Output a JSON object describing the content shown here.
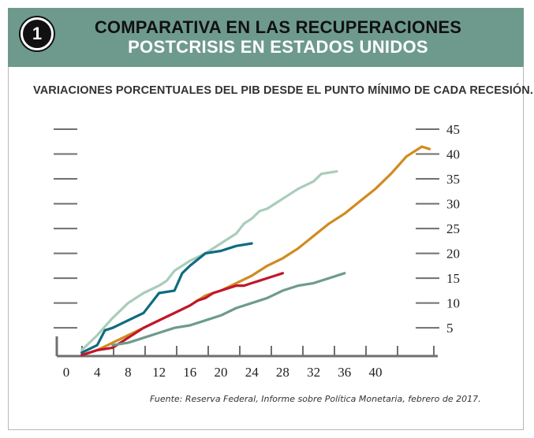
{
  "header": {
    "number": "1",
    "title_line1": "COMPARATIVA EN LAS RECUPERACIONES",
    "title_line2": "POSTCRISIS EN ESTADOS UNIDOS"
  },
  "subtitle": "VARIACIONES PORCENTUALES DEL PIB DESDE EL PUNTO MÍNIMO DE CADA RECESIÓN.",
  "source": "Fuente: Reserva Federal, Informe sobre Política Monetaria, febrero de 2017.",
  "chart_data": {
    "type": "line",
    "xlim": [
      -2,
      48
    ],
    "ylim": [
      -1,
      45
    ],
    "x_ticks": [
      0,
      4,
      8,
      12,
      16,
      20,
      24,
      28,
      32,
      36,
      40
    ],
    "y_ticks": [
      5,
      10,
      15,
      20,
      25,
      30,
      35,
      40,
      45
    ],
    "grid": false,
    "series": [
      {
        "color": "#a9cdbb",
        "x": [
          2,
          4,
          6,
          8,
          10,
          12,
          13,
          14,
          15,
          16,
          18,
          20,
          22,
          23,
          24,
          25,
          26,
          27,
          28,
          30,
          32,
          33,
          35
        ],
        "y": [
          0.5,
          3.5,
          7,
          10,
          12,
          13.5,
          14.5,
          16.5,
          17.5,
          18.5,
          20,
          22,
          24,
          26,
          27,
          28.5,
          29,
          30,
          31,
          33,
          34.5,
          36,
          36.5
        ]
      },
      {
        "color": "#d18b1f",
        "x": [
          2,
          4,
          6,
          8,
          10,
          12,
          14,
          16,
          18,
          20,
          22,
          24,
          26,
          28,
          30,
          32,
          34,
          36,
          38,
          40,
          42,
          44,
          46,
          47
        ],
        "y": [
          -0.5,
          0.5,
          2,
          3.5,
          5,
          6.5,
          8,
          9.5,
          11.5,
          12.5,
          14,
          15.5,
          17.5,
          19,
          21,
          23.5,
          26,
          28,
          30.5,
          33,
          36,
          39.5,
          41.5,
          41
        ]
      },
      {
        "color": "#0f6b80",
        "x": [
          2,
          4,
          5,
          6,
          8,
          10,
          11,
          12,
          14,
          15,
          16,
          18,
          20,
          21,
          22,
          24
        ],
        "y": [
          0,
          1.5,
          4.5,
          5,
          6.5,
          8,
          10,
          12,
          12.5,
          16,
          17.5,
          20,
          20.5,
          21,
          21.5,
          22
        ]
      },
      {
        "color": "#c0172b",
        "x": [
          2,
          4,
          6,
          8,
          10,
          12,
          14,
          16,
          17,
          18,
          19,
          20,
          21,
          22,
          23,
          24,
          25,
          26,
          27,
          28
        ],
        "y": [
          -0.5,
          0.5,
          1,
          3,
          5,
          6.5,
          8,
          9.5,
          10.5,
          11,
          12,
          12.5,
          13,
          13.5,
          13.5,
          14,
          14.5,
          15,
          15.5,
          16
        ]
      },
      {
        "color": "#6e9a8d",
        "x": [
          6,
          8,
          10,
          12,
          14,
          16,
          18,
          20,
          22,
          24,
          26,
          28,
          30,
          32,
          34,
          36
        ],
        "y": [
          1.5,
          2,
          3,
          4,
          5,
          5.5,
          6.5,
          7.5,
          9,
          10,
          11,
          12.5,
          13.5,
          14,
          15,
          16
        ]
      }
    ]
  }
}
